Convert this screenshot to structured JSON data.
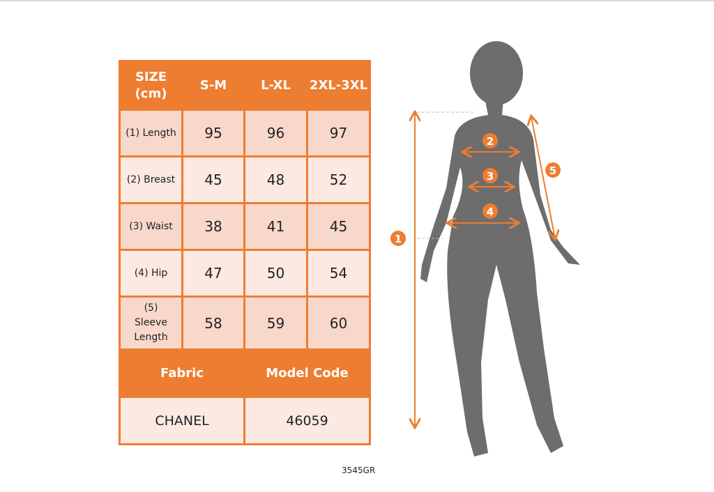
{
  "table": {
    "headers": [
      "SIZE (cm)",
      "S-M",
      "L-XL",
      "2XL-3XL"
    ],
    "rows": [
      {
        "label": "(1) Length",
        "values": [
          "95",
          "96",
          "97"
        ]
      },
      {
        "label": "(2) Breast",
        "values": [
          "45",
          "48",
          "52"
        ]
      },
      {
        "label": "(3) Waist",
        "values": [
          "38",
          "41",
          "45"
        ]
      },
      {
        "label": "(4) Hip",
        "values": [
          "47",
          "50",
          "54"
        ]
      },
      {
        "label": "(5) Sleeve Length",
        "values": [
          "58",
          "59",
          "60"
        ]
      }
    ],
    "footer_headers": [
      "Fabric",
      "Model Code"
    ],
    "footer_values": [
      "CHANEL",
      "46059"
    ]
  },
  "markers": [
    "1",
    "2",
    "3",
    "4",
    "5"
  ],
  "code": "3545GR",
  "colors": {
    "accent": "#ED7D31",
    "cell": "#F8D8CB",
    "cell_alt": "#FBE9E2",
    "silhouette": "#6d6d6d"
  }
}
